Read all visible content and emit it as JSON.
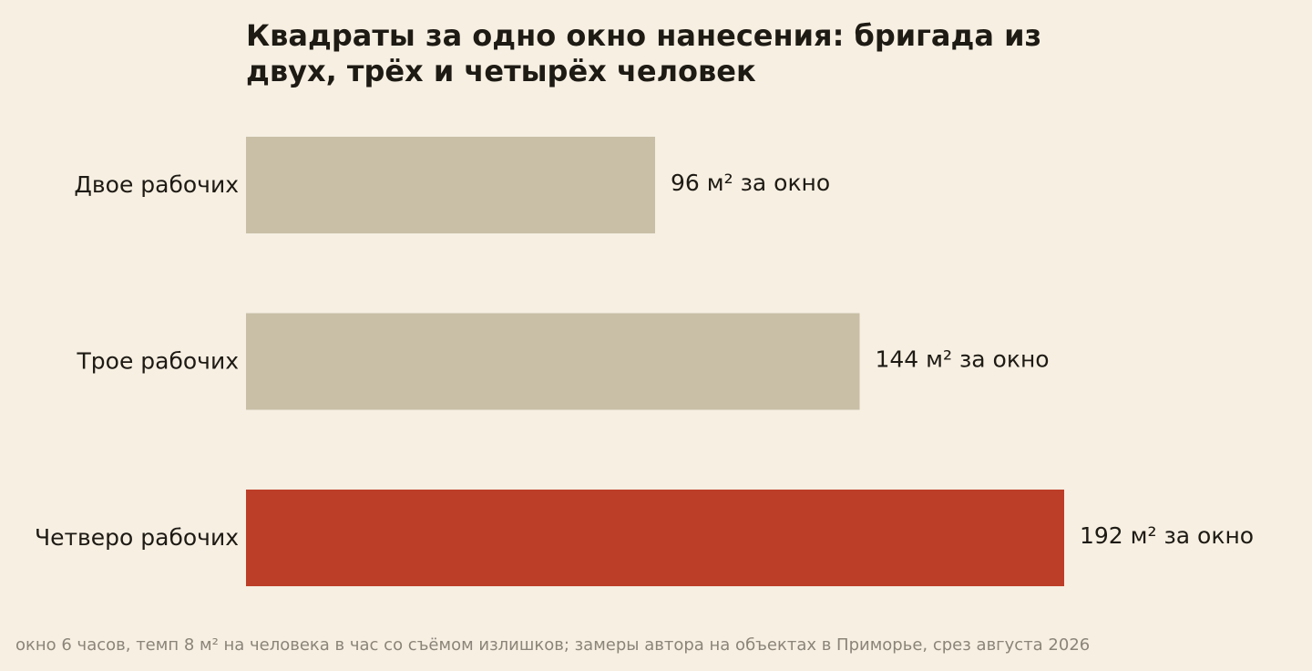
{
  "chart_data": {
    "type": "bar",
    "orientation": "horizontal",
    "title": "Квадраты за одно окно нанесения: бригада из двух, трёх и четырёх человек",
    "categories": [
      "Двое рабочих",
      "Трое рабочих",
      "Четверо рабочих"
    ],
    "values": [
      96,
      144,
      192
    ],
    "unit": "м²",
    "data_labels": [
      "96 м² за окно",
      "144 м² за окно",
      "192 м² за окно"
    ],
    "highlight_index": 2,
    "colors": {
      "default": "#c9bfa7",
      "highlight": "#bd3e28",
      "text": "#1e1a14",
      "footnote": "#8b8478",
      "background": "#f6efe2"
    },
    "xlim": [
      0,
      192
    ],
    "grid": false,
    "legend": "none"
  },
  "footnote": "окно 6 часов, темп 8 м² на человека в час со съёмом излишков; замеры автора на объектах в Приморье, срез августа 2026"
}
